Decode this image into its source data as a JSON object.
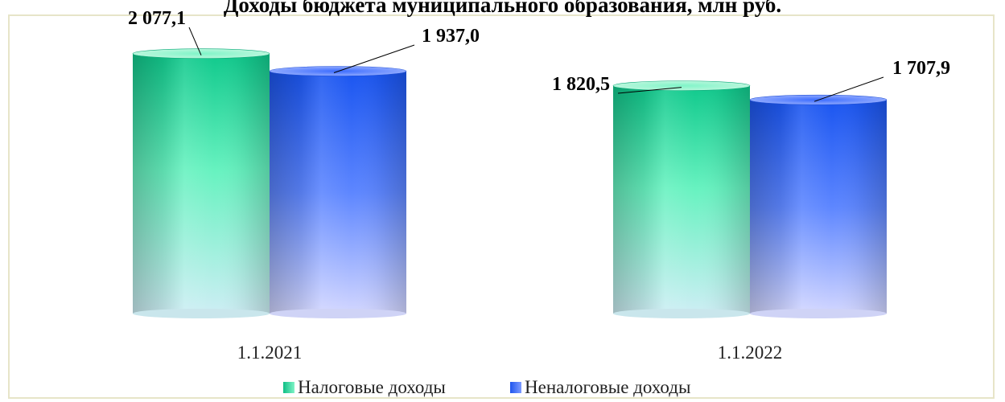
{
  "chart_data": {
    "type": "bar",
    "title": "Доходы бюджета муниципального образования, млн руб.",
    "categories": [
      "1.1.2021",
      "1.1.2022"
    ],
    "series": [
      {
        "name": "Налоговые доходы",
        "values": [
          2077.1,
          1820.5
        ],
        "labels": [
          "2 077,1",
          "1 820,5"
        ]
      },
      {
        "name": "Неналоговые доходы",
        "values": [
          1937.0,
          1707.9
        ],
        "labels": [
          "1 937,0",
          "1 707,9"
        ]
      }
    ],
    "ylim": [
      0,
      2300
    ],
    "grid": false,
    "legend_position": "bottom",
    "bar_shape": "cylinder"
  },
  "colors": {
    "tax": "#1ec990",
    "tax_light": "#6ff5c3",
    "nontax": "#2a5ef0",
    "nontax_light": "#5c87ff",
    "frame_border": "#e7e5c8"
  }
}
